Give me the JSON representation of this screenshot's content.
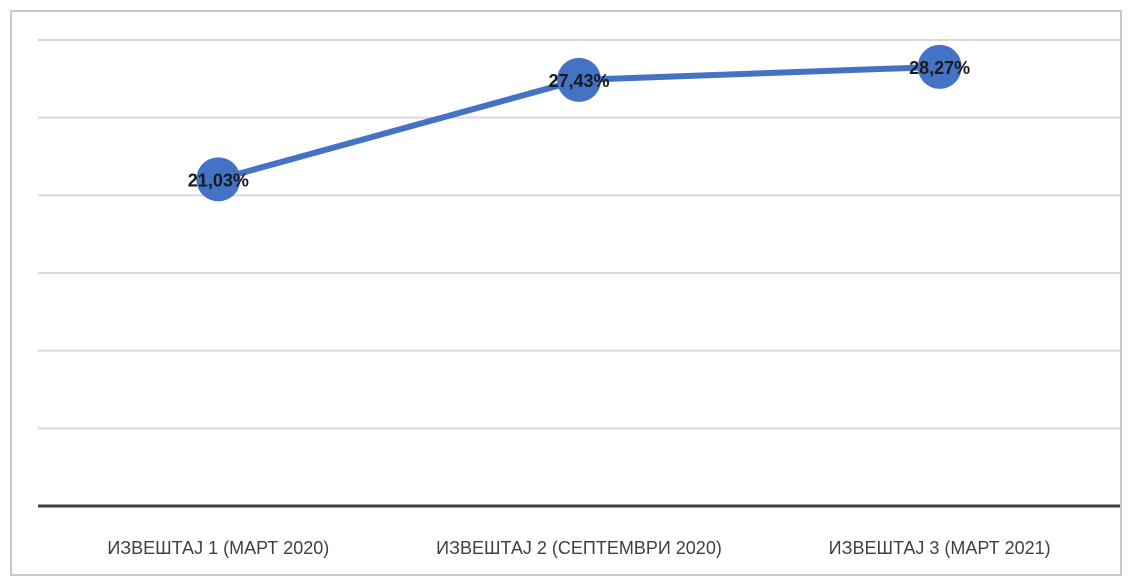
{
  "chart_data": {
    "type": "line",
    "title": "",
    "xlabel": "",
    "ylabel": "",
    "categories": [
      "ИЗВЕШТАЈ 1 (МАРТ 2020)",
      "ИЗВЕШТАЈ 2 (СЕПТЕМВРИ 2020)",
      "ИЗВЕШТАЈ 3 (МАРТ 2021)"
    ],
    "series": [
      {
        "values": [
          21.03,
          27.43,
          28.27
        ],
        "labels": [
          "21,03%",
          "27,43%",
          "28,27%"
        ],
        "color": "#4472c4"
      }
    ],
    "ylim": [
      0,
      30
    ],
    "grid": true,
    "legend": "none"
  }
}
